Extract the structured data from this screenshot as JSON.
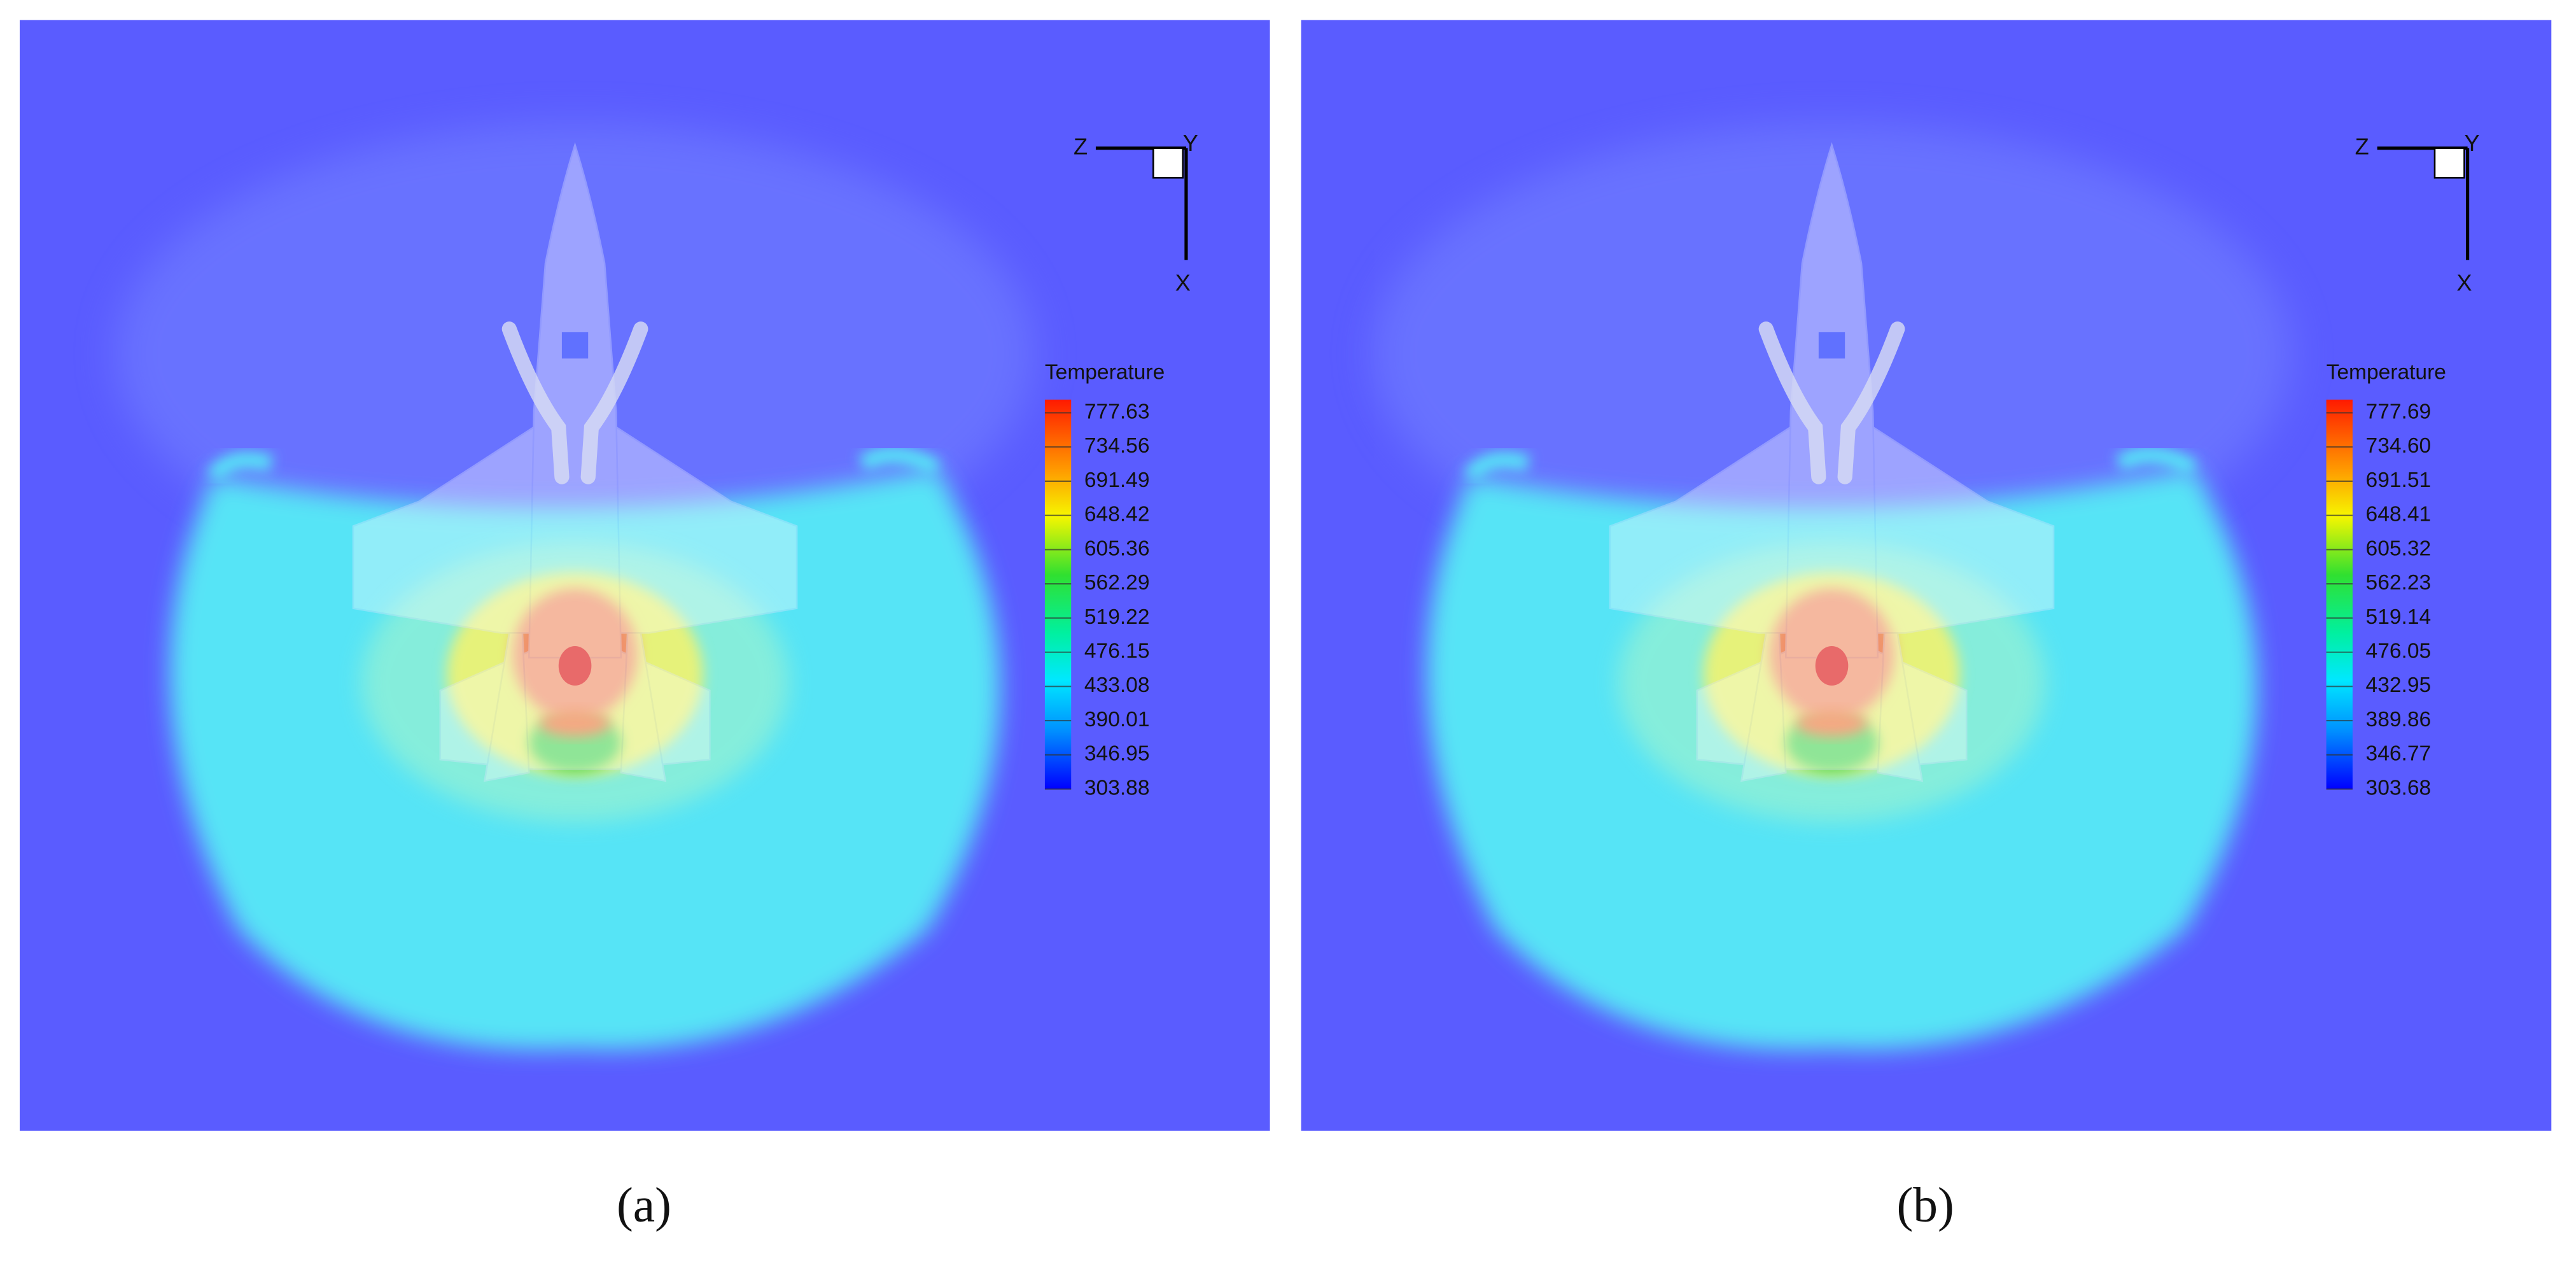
{
  "panels": [
    {
      "caption": "(a)",
      "axes": {
        "z": "Z",
        "y": "Y",
        "x": "X"
      },
      "legend": {
        "title": "Temperature",
        "levels": [
          "777.63",
          "734.56",
          "691.49",
          "648.42",
          "605.36",
          "562.29",
          "519.22",
          "476.15",
          "433.08",
          "390.01",
          "346.95",
          "303.88"
        ]
      }
    },
    {
      "caption": "(b)",
      "axes": {
        "z": "Z",
        "y": "Y",
        "x": "X"
      },
      "legend": {
        "title": "Temperature",
        "levels": [
          "777.69",
          "734.60",
          "691.51",
          "648.41",
          "605.32",
          "562.23",
          "519.14",
          "476.05",
          "432.95",
          "389.86",
          "346.77",
          "303.68"
        ]
      }
    }
  ]
}
